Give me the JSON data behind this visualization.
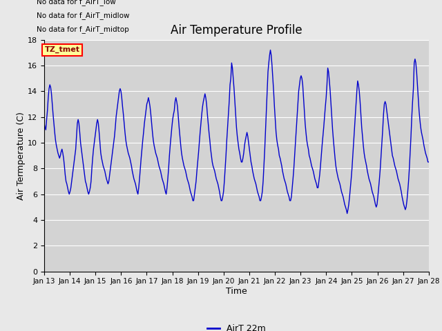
{
  "title": "Air Temperature Profile",
  "xlabel": "Time",
  "ylabel": "Air Termperature (C)",
  "legend_label": "AirT 22m",
  "no_data_lines": [
    "No data for f_AirT_low",
    "No data for f_AirT_midlow",
    "No data for f_AirT_midtop"
  ],
  "tz_label": "TZ_tmet",
  "ylim": [
    0,
    18
  ],
  "yticks": [
    0,
    2,
    4,
    6,
    8,
    10,
    12,
    14,
    16,
    18
  ],
  "line_color": "#0000cc",
  "fig_facecolor": "#e8e8e8",
  "ax_facecolor": "#d3d3d3",
  "x_tick_labels": [
    "Jan 13",
    "Jan 14",
    "Jan 15",
    "Jan 16",
    "Jan 17",
    "Jan 18",
    "Jan 19",
    "Jan 20",
    "Jan 21",
    "Jan 22",
    "Jan 23",
    "Jan 24",
    "Jan 25",
    "Jan 26",
    "Jan 27",
    "Jan 28"
  ],
  "temperature_data": [
    11.5,
    11.2,
    11.0,
    11.8,
    12.5,
    13.5,
    14.2,
    14.5,
    14.3,
    13.8,
    13.0,
    12.2,
    11.5,
    10.8,
    10.2,
    9.8,
    9.5,
    9.2,
    9.0,
    8.8,
    9.0,
    9.3,
    9.5,
    9.2,
    8.8,
    8.2,
    7.5,
    7.0,
    6.8,
    6.5,
    6.2,
    6.0,
    6.2,
    6.5,
    7.0,
    7.5,
    8.0,
    8.5,
    9.0,
    9.5,
    10.5,
    11.5,
    11.8,
    11.5,
    10.8,
    10.0,
    9.5,
    9.0,
    8.5,
    8.0,
    7.5,
    7.0,
    6.8,
    6.5,
    6.2,
    6.0,
    6.2,
    6.5,
    7.0,
    8.0,
    8.8,
    9.5,
    10.0,
    10.5,
    11.0,
    11.5,
    11.8,
    11.5,
    10.8,
    10.0,
    9.2,
    8.8,
    8.5,
    8.2,
    8.0,
    7.8,
    7.5,
    7.2,
    7.0,
    6.8,
    7.0,
    7.5,
    8.0,
    8.5,
    9.0,
    9.5,
    10.0,
    10.5,
    11.2,
    12.0,
    12.5,
    13.0,
    13.5,
    14.0,
    14.2,
    14.0,
    13.5,
    12.8,
    12.2,
    11.5,
    10.8,
    10.2,
    9.8,
    9.5,
    9.2,
    9.0,
    8.8,
    8.5,
    8.2,
    7.8,
    7.5,
    7.2,
    7.0,
    6.8,
    6.5,
    6.2,
    6.0,
    6.5,
    7.2,
    8.0,
    8.8,
    9.5,
    10.2,
    10.8,
    11.5,
    12.0,
    12.5,
    13.0,
    13.2,
    13.5,
    13.2,
    12.8,
    12.2,
    11.5,
    10.8,
    10.2,
    9.8,
    9.5,
    9.2,
    9.0,
    8.8,
    8.5,
    8.2,
    8.0,
    7.8,
    7.5,
    7.2,
    7.0,
    6.8,
    6.5,
    6.2,
    6.0,
    6.5,
    7.2,
    8.0,
    9.0,
    9.8,
    10.5,
    11.2,
    11.8,
    12.2,
    12.5,
    13.2,
    13.5,
    13.2,
    12.8,
    12.0,
    11.2,
    10.5,
    9.8,
    9.2,
    8.8,
    8.5,
    8.2,
    8.0,
    7.8,
    7.5,
    7.2,
    7.0,
    6.8,
    6.5,
    6.2,
    6.0,
    5.8,
    5.5,
    5.5,
    6.0,
    6.5,
    7.0,
    7.8,
    8.5,
    9.2,
    10.0,
    10.8,
    11.5,
    12.2,
    12.8,
    13.2,
    13.5,
    13.8,
    13.5,
    13.0,
    12.2,
    11.5,
    10.8,
    10.2,
    9.5,
    9.0,
    8.5,
    8.2,
    8.0,
    7.8,
    7.5,
    7.2,
    7.0,
    6.8,
    6.5,
    6.2,
    5.8,
    5.5,
    5.5,
    5.8,
    6.2,
    7.0,
    8.0,
    9.0,
    10.2,
    11.2,
    12.2,
    13.2,
    14.5,
    15.0,
    16.2,
    15.8,
    15.0,
    14.2,
    13.2,
    12.2,
    11.2,
    10.5,
    10.0,
    9.5,
    9.2,
    8.8,
    8.5,
    8.5,
    8.8,
    9.2,
    9.8,
    10.2,
    10.5,
    10.8,
    10.5,
    10.0,
    9.5,
    9.0,
    8.5,
    8.2,
    7.8,
    7.5,
    7.2,
    7.0,
    6.8,
    6.5,
    6.2,
    6.0,
    5.8,
    5.5,
    5.5,
    5.8,
    6.2,
    7.0,
    8.2,
    9.5,
    11.0,
    12.5,
    14.0,
    15.5,
    16.2,
    16.8,
    17.2,
    16.8,
    16.0,
    15.0,
    14.0,
    12.8,
    11.8,
    10.8,
    10.2,
    9.8,
    9.5,
    9.0,
    8.8,
    8.5,
    8.2,
    7.8,
    7.5,
    7.2,
    7.0,
    6.8,
    6.5,
    6.2,
    6.0,
    5.8,
    5.5,
    5.5,
    5.8,
    6.5,
    7.2,
    8.0,
    9.0,
    10.0,
    11.0,
    12.0,
    13.0,
    14.0,
    14.5,
    15.0,
    15.2,
    15.0,
    14.5,
    13.5,
    12.5,
    11.5,
    10.8,
    10.2,
    9.8,
    9.5,
    9.0,
    8.8,
    8.5,
    8.2,
    8.0,
    7.8,
    7.5,
    7.2,
    7.0,
    6.8,
    6.5,
    6.5,
    7.0,
    7.5,
    8.2,
    9.0,
    9.8,
    10.5,
    11.2,
    12.0,
    12.8,
    13.5,
    14.5,
    15.8,
    15.5,
    14.8,
    14.0,
    13.0,
    12.0,
    11.0,
    10.2,
    9.5,
    8.8,
    8.2,
    7.8,
    7.5,
    7.2,
    7.0,
    6.8,
    6.5,
    6.2,
    6.0,
    5.8,
    5.5,
    5.2,
    5.0,
    4.8,
    4.5,
    4.8,
    5.2,
    5.8,
    6.5,
    7.2,
    8.0,
    9.0,
    10.0,
    11.0,
    12.0,
    13.0,
    14.0,
    14.8,
    14.5,
    14.0,
    13.2,
    12.2,
    11.2,
    10.5,
    9.8,
    9.2,
    8.8,
    8.5,
    8.2,
    7.8,
    7.5,
    7.2,
    7.0,
    6.8,
    6.5,
    6.2,
    6.0,
    5.8,
    5.5,
    5.2,
    5.0,
    5.2,
    5.8,
    6.5,
    7.2,
    8.0,
    9.0,
    10.0,
    11.0,
    12.2,
    13.0,
    13.2,
    13.0,
    12.5,
    12.0,
    11.5,
    11.0,
    10.5,
    10.0,
    9.5,
    9.0,
    8.8,
    8.5,
    8.2,
    8.0,
    7.8,
    7.5,
    7.2,
    7.0,
    6.8,
    6.5,
    6.2,
    5.8,
    5.5,
    5.2,
    5.0,
    4.8,
    5.0,
    5.5,
    6.2,
    7.0,
    8.0,
    9.2,
    10.5,
    12.0,
    13.2,
    14.2,
    16.2,
    16.5,
    16.2,
    15.5,
    14.5,
    13.5,
    12.5,
    11.8,
    11.2,
    10.8,
    10.5,
    10.2,
    9.8,
    9.5,
    9.2,
    9.0,
    8.8,
    8.5,
    8.5
  ]
}
